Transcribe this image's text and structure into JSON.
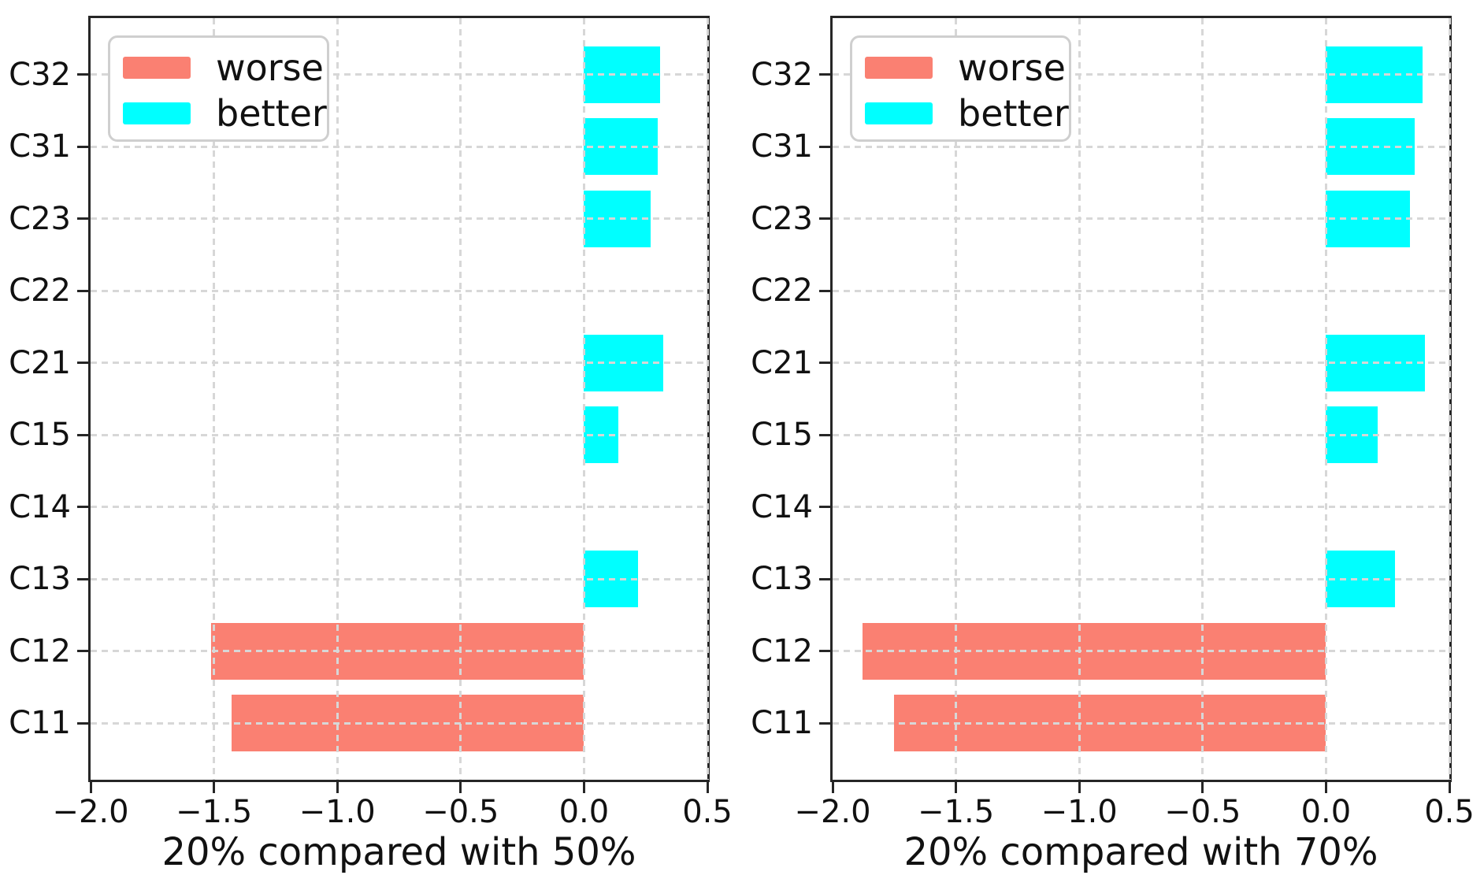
{
  "chart_data": [
    {
      "type": "bar",
      "orientation": "horizontal",
      "xlabel": "20% compared with 50%",
      "categories": [
        "C11",
        "C12",
        "C13",
        "C14",
        "C15",
        "C21",
        "C22",
        "C23",
        "C31",
        "C32"
      ],
      "values": [
        -1.43,
        -1.51,
        0.22,
        0,
        0.14,
        0.32,
        0,
        0.27,
        0.3,
        0.31
      ],
      "xlim": [
        -2.0,
        0.5
      ],
      "xticks": [
        -2.0,
        -1.5,
        -1.0,
        -0.5,
        0.0,
        0.5
      ],
      "xtick_labels": [
        "−2.0",
        "−1.5",
        "−1.0",
        "−0.5",
        "0.0",
        "0.5"
      ],
      "legend": [
        {
          "label": "worse",
          "color": "#fa8072"
        },
        {
          "label": "better",
          "color": "#00ffff"
        }
      ],
      "legend_position": "upper left",
      "bar_colors": {
        "negative": "#fa8072",
        "positive": "#00ffff"
      },
      "grid": {
        "show": true,
        "style": "dashed",
        "color": "#d7d7d7",
        "axes": "both"
      }
    },
    {
      "type": "bar",
      "orientation": "horizontal",
      "xlabel": "20% compared with 70%",
      "categories": [
        "C11",
        "C12",
        "C13",
        "C14",
        "C15",
        "C21",
        "C22",
        "C23",
        "C31",
        "C32"
      ],
      "values": [
        -1.75,
        -1.88,
        0.28,
        0,
        0.21,
        0.4,
        0,
        0.34,
        0.36,
        0.39
      ],
      "xlim": [
        -2.0,
        0.5
      ],
      "xticks": [
        -2.0,
        -1.5,
        -1.0,
        -0.5,
        0.0,
        0.5
      ],
      "xtick_labels": [
        "−2.0",
        "−1.5",
        "−1.0",
        "−0.5",
        "0.0",
        "0.5"
      ],
      "legend": [
        {
          "label": "worse",
          "color": "#fa8072"
        },
        {
          "label": "better",
          "color": "#00ffff"
        }
      ],
      "legend_position": "upper left",
      "bar_colors": {
        "negative": "#fa8072",
        "positive": "#00ffff"
      },
      "grid": {
        "show": true,
        "style": "dashed",
        "color": "#d7d7d7",
        "axes": "both"
      }
    }
  ]
}
